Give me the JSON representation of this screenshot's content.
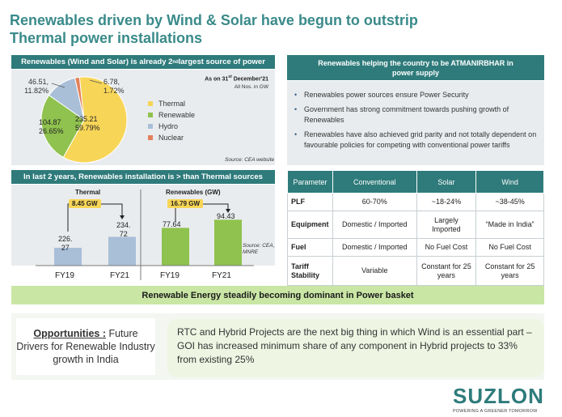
{
  "title_line1": "Renewables driven by Wind & Solar have begun to outstrip",
  "title_line2": "Thermal power installations",
  "pie_panel": {
    "header_prefix": "Renewables (Wind and Solar) is already 2",
    "header_sup": "nd",
    "header_suffix": " largest source of power",
    "as_on_prefix": "As on 31",
    "as_on_sup": "st",
    "as_on_suffix": " December'21",
    "units": "All Nos. in GW",
    "source": "Source: CEA website",
    "legend": [
      {
        "label": "Thermal",
        "color": "#f7d557"
      },
      {
        "label": "Renewable",
        "color": "#8fc24e"
      },
      {
        "label": "Hydro",
        "color": "#a9bfd8"
      },
      {
        "label": "Nuclear",
        "color": "#e2805a"
      }
    ],
    "labels": {
      "thermal": [
        "235.21",
        "59.79%"
      ],
      "renewable": [
        "104.87",
        "26.65%"
      ],
      "hydro": [
        "46.51,",
        "11.82%"
      ],
      "nuclear": [
        "6.78,",
        "1.72%"
      ]
    }
  },
  "bar_panel": {
    "header": "In last 2 years, Renewables installation is > than Thermal sources",
    "thermal_title": "Thermal",
    "thermal_delta": "8.45 GW",
    "renewables_title": "Renewables (GW)",
    "renewables_delta": "16.79 GW",
    "source_line1": "Source: CEA,",
    "source_line2": "MNRE",
    "bar_labels": {
      "thermal_fy19_a": "226.",
      "thermal_fy19_b": "27",
      "thermal_fy21_a": "234.",
      "thermal_fy21_b": "72",
      "renew_fy19": "77.64",
      "renew_fy21": "94.43"
    },
    "categories": [
      "FY19",
      "FY21",
      "FY19",
      "FY21"
    ]
  },
  "chart_data": [
    {
      "type": "pie",
      "title": "Renewables (Wind and Solar) is already 2nd largest source of power",
      "units": "GW",
      "slices": [
        {
          "name": "Thermal",
          "value": 235.21,
          "percent": 59.79,
          "color": "#f7d557"
        },
        {
          "name": "Renewable",
          "value": 104.87,
          "percent": 26.65,
          "color": "#8fc24e"
        },
        {
          "name": "Hydro",
          "value": 46.51,
          "percent": 11.82,
          "color": "#a9bfd8"
        },
        {
          "name": "Nuclear",
          "value": 6.78,
          "percent": 1.72,
          "color": "#e2805a"
        }
      ]
    },
    {
      "type": "bar",
      "title": "Thermal",
      "categories": [
        "FY19",
        "FY21"
      ],
      "values": [
        226.27,
        234.72
      ],
      "annotation": "8.45 GW",
      "color": "#a9bfd8"
    },
    {
      "type": "bar",
      "title": "Renewables (GW)",
      "categories": [
        "FY19",
        "FY21"
      ],
      "values": [
        77.64,
        94.43
      ],
      "annotation": "16.79 GW",
      "color": "#8fc24e"
    }
  ],
  "atmanirbhar": {
    "header_line1": "Renewables helping the country to be ATMANIRBHAR in",
    "header_line2": "power supply",
    "bullets": [
      "Renewables power sources ensure Power Security",
      "Government has strong commitment towards pushing growth of Renewables",
      "Renewables have also achieved grid parity and not totally dependent on favourable policies for competing with conventional power tariffs"
    ]
  },
  "comparison_table": {
    "headers": [
      "Parameter",
      "Conventional",
      "Solar",
      "Wind"
    ],
    "rows": [
      {
        "param": "PLF",
        "conventional": "60-70%",
        "solar": "~18-24%",
        "wind": "~38-45%"
      },
      {
        "param": "Equipment",
        "conventional": "Domestic / Imported",
        "solar": "Largely Imported",
        "wind": "“Made in India”"
      },
      {
        "param": "Fuel",
        "conventional": "Domestic / Imported",
        "solar": "No Fuel Cost",
        "wind": "No Fuel Cost"
      },
      {
        "param": "Tariff Stability",
        "conventional": "Variable",
        "solar": "Constant for 25 years",
        "wind": "Constant for 25 years"
      }
    ]
  },
  "green_banner": "Renewable Energy steadily becoming dominant in Power basket",
  "opportunities": {
    "label": "Opportunities :",
    "text": " Future Drivers for Renewable Industry growth in India"
  },
  "rtc_text": "RTC and Hybrid Projects are the next big thing in which Wind is an essential part – GOI has increased minimum share of any component in Hybrid projects to 33% from existing 25%",
  "logo": {
    "name": "SUZLON",
    "tagline": "POWERING A GREENER TOMORROW"
  }
}
